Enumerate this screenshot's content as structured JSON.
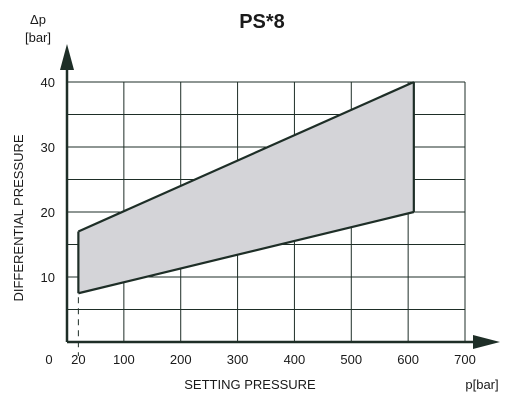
{
  "chart_data": {
    "type": "area",
    "title": "PS*8",
    "xlabel": "SETTING PRESSURE",
    "xunit": "p[bar]",
    "ylabel": "DIFFERENTIAL PRESSURE",
    "yunit_symbol": "Δp",
    "yunit": "[bar]",
    "xlim": [
      0,
      700
    ],
    "ylim": [
      0,
      40
    ],
    "xticks": [
      0,
      20,
      100,
      200,
      300,
      400,
      500,
      600,
      700
    ],
    "yticks": [
      10,
      20,
      30,
      40
    ],
    "grid": true,
    "series": [
      {
        "x": [
          20,
          610
        ],
        "y": [
          17,
          40
        ]
      },
      {
        "x": [
          20,
          610
        ],
        "y": [
          7.5,
          20
        ]
      }
    ],
    "region_polygon": [
      [
        20,
        17
      ],
      [
        610,
        40
      ],
      [
        610,
        20
      ],
      [
        20,
        7.5
      ]
    ],
    "fill_color": "#d4d4d8",
    "line_color": "#1e2e27"
  }
}
